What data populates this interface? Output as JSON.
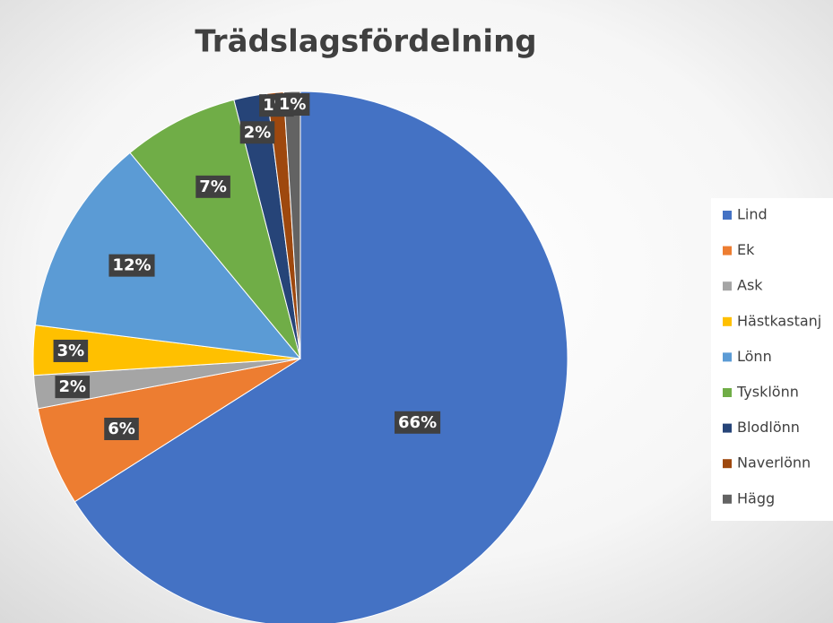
{
  "chart_data": {
    "type": "pie",
    "title": "Trädslagsfördelning",
    "categories": [
      "Lind",
      "Ek",
      "Ask",
      "Hästkastanj",
      "Lönn",
      "Tysklönn",
      "Blodlönn",
      "Naverlönn",
      "Hägg"
    ],
    "values": [
      66,
      6,
      2,
      3,
      12,
      7,
      2,
      1,
      1
    ],
    "value_labels": [
      "66%",
      "6%",
      "2%",
      "3%",
      "12%",
      "7%",
      "2%",
      "1%",
      "1%"
    ],
    "colors": [
      "#4472c4",
      "#ed7d31",
      "#a5a5a5",
      "#ffc000",
      "#5b9bd5",
      "#70ad47",
      "#264478",
      "#9e480e",
      "#636363"
    ],
    "legend": "right"
  }
}
